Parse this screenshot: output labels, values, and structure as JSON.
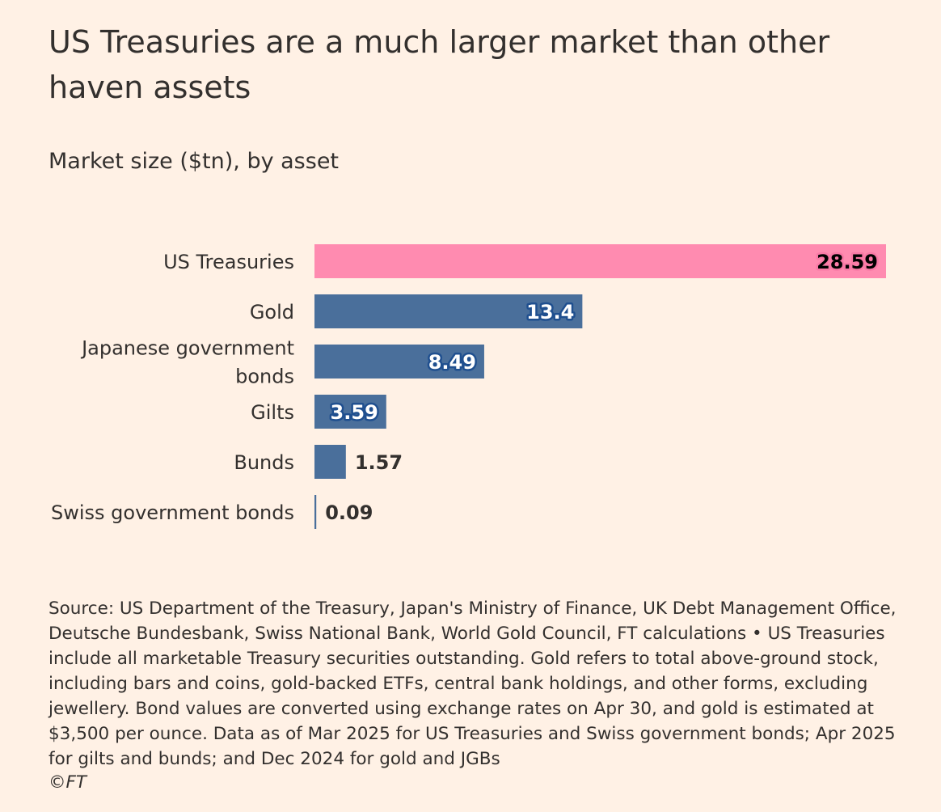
{
  "header": {
    "title": "US Treasuries are a much larger market than other haven assets",
    "subtitle": "Market size ($tn), by asset"
  },
  "chart_data": {
    "type": "bar",
    "orientation": "horizontal",
    "title": "US Treasuries are a much larger market than other haven assets",
    "subtitle": "Market size ($tn), by asset",
    "categories": [
      [
        "US Treasuries"
      ],
      [
        "Gold"
      ],
      [
        "Japanese government",
        "bonds"
      ],
      [
        "Gilts"
      ],
      [
        "Bunds"
      ],
      [
        "Swiss government bonds"
      ]
    ],
    "values": [
      28.59,
      13.4,
      8.49,
      3.59,
      1.57,
      0.09
    ],
    "value_labels": [
      "28.59",
      "13.4",
      "8.49",
      "3.59",
      "1.57",
      "0.09"
    ],
    "highlight_colors": [
      "#ff8bb0",
      "#4a6f9b",
      "#4a6f9b",
      "#4a6f9b",
      "#4a6f9b",
      "#4a6f9b"
    ],
    "xlim": [
      0,
      28.59
    ],
    "grid": false,
    "legend": "none"
  },
  "footer": {
    "source": "Source: US Department of the Treasury, Japan's Ministry of Finance, UK Debt Management Office, Deutsche Bundesbank, Swiss National Bank, World Gold Council, FT calculations • US Treasuries include all marketable Treasury securities outstanding. Gold refers to total above-ground stock, including bars and coins, gold-backed ETFs, central bank holdings, and other forms, excluding jewellery. Bond values are converted using exchange rates on Apr 30, and gold is estimated at $3,500 per ounce. Data as of Mar 2025 for US Treasuries and Swiss government bonds; Apr 2025 for gilts and bunds; and Dec 2024 for gold and JGBs",
    "copyright": "©FT"
  }
}
